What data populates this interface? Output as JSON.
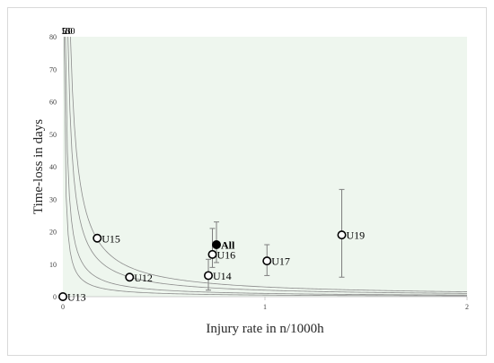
{
  "chart_data": {
    "type": "scatter",
    "title": "",
    "xlabel": "Injury rate in n/1000h",
    "ylabel": "Time-loss in days",
    "xlim": [
      0,
      2
    ],
    "ylim": [
      0,
      80
    ],
    "x_ticks": [
      0,
      1,
      2
    ],
    "y_ticks": [
      0,
      10,
      20,
      30,
      40,
      50,
      60,
      70,
      80
    ],
    "background_color": "#eef6ee",
    "isolines": [
      {
        "label": "5",
        "burden": 5
      },
      {
        "label": "10",
        "burden": 10
      },
      {
        "label": "20",
        "burden": 20
      },
      {
        "label": "30",
        "burden": 30
      }
    ],
    "points": [
      {
        "label": "U13",
        "x": 0.0,
        "y": 0.0,
        "err_low": null,
        "err_high": null,
        "filled": false
      },
      {
        "label": "U15",
        "x": 0.17,
        "y": 18.0,
        "err_low": null,
        "err_high": null,
        "filled": false
      },
      {
        "label": "U12",
        "x": 0.33,
        "y": 6.0,
        "err_low": null,
        "err_high": null,
        "filled": false
      },
      {
        "label": "U14",
        "x": 0.72,
        "y": 6.5,
        "err_low": 2.0,
        "err_high": 11.5,
        "filled": false
      },
      {
        "label": "U16",
        "x": 0.74,
        "y": 13.0,
        "err_low": 9.0,
        "err_high": 21.0,
        "filled": false
      },
      {
        "label": "All",
        "x": 0.76,
        "y": 16.0,
        "err_low": 10.5,
        "err_high": 23.0,
        "filled": true
      },
      {
        "label": "U17",
        "x": 1.01,
        "y": 11.0,
        "err_low": 6.5,
        "err_high": 16.0,
        "filled": false
      },
      {
        "label": "U19",
        "x": 1.38,
        "y": 19.0,
        "err_low": 6.0,
        "err_high": 33.0,
        "filled": false
      }
    ]
  }
}
